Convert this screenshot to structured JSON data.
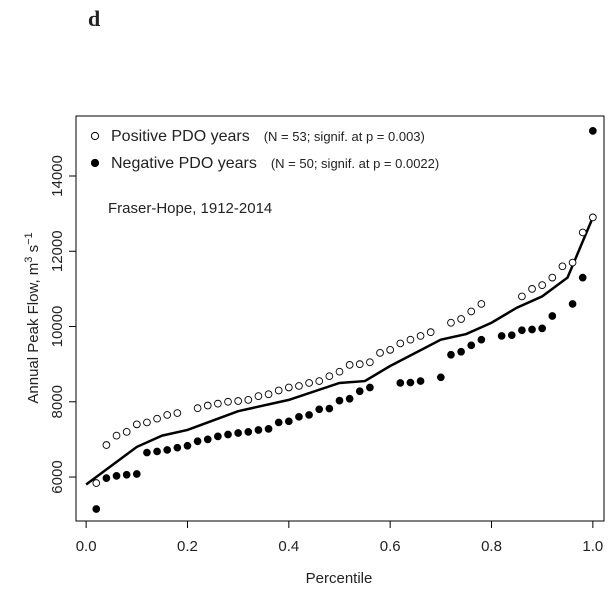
{
  "panel_label": "d",
  "chart_data": {
    "type": "scatter",
    "xlabel": "Percentile",
    "ylabel_parts": [
      "Annual Peak Flow, m",
      "3",
      " s",
      "−1"
    ],
    "annotation": "Fraser-Hope, 1912-2014",
    "xlim": [
      -0.02,
      1.022
    ],
    "ylim": [
      4831,
      15595
    ],
    "xticks": [
      {
        "value": 0,
        "label": "0.0"
      },
      0.2,
      0.4,
      0.6,
      0.8,
      {
        "value": 1,
        "label": "1.0"
      }
    ],
    "yticks": [
      6000,
      8000,
      10000,
      12000,
      14000
    ],
    "legend": "top-left",
    "series": [
      {
        "name": "Positive PDO  years",
        "stats": "(N = 53; signif. at p = 0.003)",
        "marker": "open",
        "color": "#000000",
        "x": [
          0.02,
          0.04,
          0.06,
          0.08,
          0.1,
          0.12,
          0.14,
          0.16,
          0.18,
          0.22,
          0.24,
          0.26,
          0.28,
          0.3,
          0.32,
          0.34,
          0.36,
          0.38,
          0.4,
          0.42,
          0.44,
          0.46,
          0.48,
          0.5,
          0.52,
          0.54,
          0.56,
          0.58,
          0.6,
          0.62,
          0.64,
          0.66,
          0.68,
          0.72,
          0.74,
          0.76,
          0.78,
          0.86,
          0.88,
          0.9,
          0.92,
          0.94,
          0.96,
          0.98,
          1.0
        ],
        "values": [
          5840,
          6850,
          7100,
          7200,
          7400,
          7450,
          7550,
          7650,
          7700,
          7830,
          7900,
          7950,
          8000,
          8020,
          8050,
          8150,
          8200,
          8300,
          8380,
          8420,
          8500,
          8550,
          8680,
          8800,
          8980,
          9000,
          9050,
          9300,
          9380,
          9550,
          9650,
          9750,
          9850,
          10100,
          10200,
          10400,
          10600,
          10800,
          11000,
          11100,
          11300,
          11600,
          11700,
          12500,
          12900
        ]
      },
      {
        "name": "Negative PDO  years",
        "stats": "(N = 50; signif. at p = 0.0022)",
        "marker": "filled",
        "color": "#000000",
        "x": [
          0.02,
          0.04,
          0.06,
          0.08,
          0.1,
          0.12,
          0.14,
          0.16,
          0.18,
          0.2,
          0.22,
          0.24,
          0.26,
          0.28,
          0.3,
          0.32,
          0.34,
          0.36,
          0.38,
          0.4,
          0.42,
          0.44,
          0.46,
          0.48,
          0.5,
          0.52,
          0.54,
          0.56,
          0.62,
          0.64,
          0.66,
          0.7,
          0.72,
          0.74,
          0.76,
          0.78,
          0.82,
          0.84,
          0.86,
          0.88,
          0.9,
          0.92,
          0.96,
          0.98,
          1.0
        ],
        "values": [
          5150,
          5970,
          6030,
          6060,
          6080,
          6650,
          6680,
          6720,
          6780,
          6830,
          6950,
          7000,
          7080,
          7130,
          7170,
          7200,
          7250,
          7280,
          7450,
          7480,
          7600,
          7650,
          7800,
          7820,
          8030,
          8080,
          8280,
          8380,
          8500,
          8510,
          8550,
          8650,
          9250,
          9330,
          9500,
          9650,
          9750,
          9770,
          9900,
          9920,
          9950,
          10280,
          10600,
          11300,
          15200
        ]
      }
    ],
    "line": {
      "color": "#000000",
      "x": [
        0,
        0.1,
        0.15,
        0.2,
        0.25,
        0.3,
        0.4,
        0.5,
        0.55,
        0.6,
        0.7,
        0.75,
        0.8,
        0.85,
        0.9,
        0.95,
        1.0
      ],
      "values": [
        5800,
        6800,
        7100,
        7250,
        7500,
        7750,
        8050,
        8500,
        8550,
        8950,
        9650,
        9800,
        10100,
        10500,
        10800,
        11300,
        12900
      ]
    }
  }
}
